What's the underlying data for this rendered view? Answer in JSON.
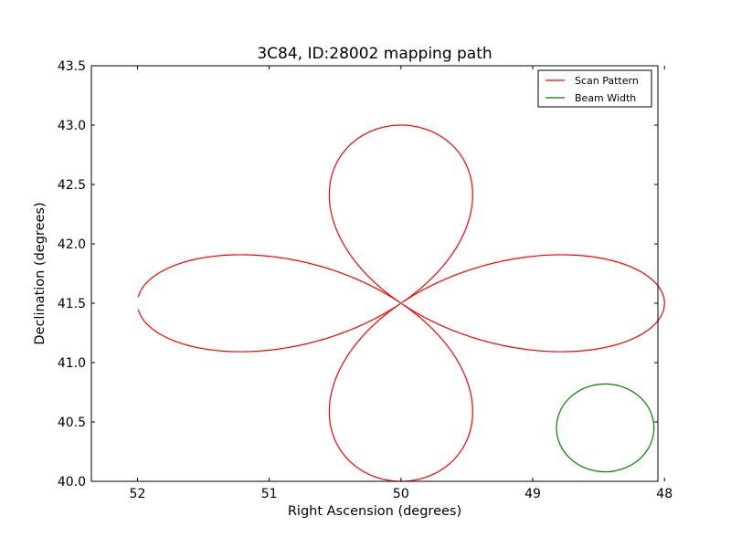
{
  "chart_data": {
    "type": "line",
    "title": "3C84, ID:28002 mapping path",
    "xlabel": "Right Ascension (degrees)",
    "ylabel": "Declination (degrees)",
    "xlim": [
      52.35,
      48.05
    ],
    "ylim": [
      40.0,
      43.5
    ],
    "xticks": [
      {
        "value": 52,
        "label": "52"
      },
      {
        "value": 51,
        "label": "51"
      },
      {
        "value": 50,
        "label": "50"
      },
      {
        "value": 49,
        "label": "49"
      },
      {
        "value": 48,
        "label": "48"
      }
    ],
    "yticks": [
      {
        "value": 40.0,
        "label": "40.0"
      },
      {
        "value": 40.5,
        "label": "40.5"
      },
      {
        "value": 41.0,
        "label": "41.0"
      },
      {
        "value": 41.5,
        "label": "41.5"
      },
      {
        "value": 42.0,
        "label": "42.0"
      },
      {
        "value": 42.5,
        "label": "42.5"
      },
      {
        "value": 43.0,
        "label": "43.0"
      },
      {
        "value": 43.5,
        "label": "43.5"
      }
    ],
    "grid": false,
    "legend_position": "top-right",
    "series": [
      {
        "name": "Scan Pattern",
        "color": "#ff0000",
        "shape": "four-leaf-rose",
        "center": [
          50.0,
          41.5
        ],
        "half_extent_ra": 2.0,
        "half_extent_dec": 1.5
      },
      {
        "name": "Beam Width",
        "color": "#008000",
        "shape": "circle",
        "center": [
          48.45,
          40.45
        ],
        "radius_ra": 0.37,
        "radius_dec": 0.37
      }
    ]
  }
}
